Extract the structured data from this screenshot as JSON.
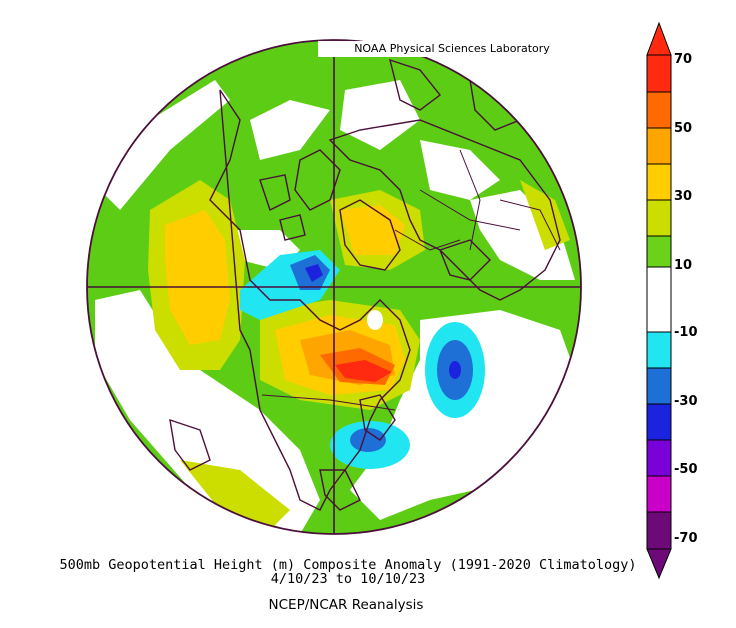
{
  "credit": "NOAA Physical Sciences Laboratory",
  "caption": {
    "line1": "500mb Geopotential Height (m) Composite Anomaly (1991-2020 Climatology)",
    "line2": "4/10/23  to 10/10/23",
    "line3": "NCEP/NCAR Reanalysis"
  },
  "colorbar": {
    "ticks": [
      "70",
      "50",
      "30",
      "10",
      "-10",
      "-30",
      "-50",
      "-70"
    ],
    "colors": [
      "#ff2a0f",
      "#ff6a00",
      "#ffa500",
      "#ffcd00",
      "#ccdd00",
      "#6ad21a",
      "#ffffff",
      "#21e6f2",
      "#1e6fd6",
      "#1c23de",
      "#7a00d9",
      "#c800c8",
      "#6d0a78"
    ]
  }
}
